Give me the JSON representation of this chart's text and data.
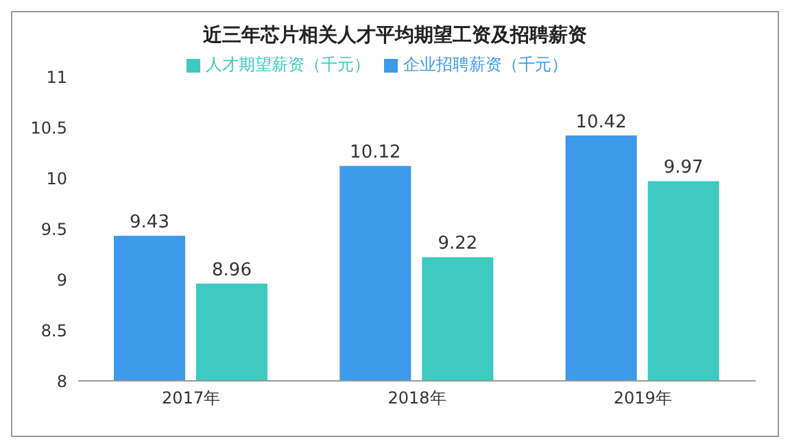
{
  "chart_data": {
    "type": "bar",
    "title": "近三年芯片相关人才平均期望工资及招聘薪资",
    "categories": [
      "2017年",
      "2018年",
      "2019年"
    ],
    "series": [
      {
        "name": "企业招聘薪资（千元）",
        "color": "#3d99ea",
        "values": [
          9.43,
          10.12,
          10.42
        ]
      },
      {
        "name": "人才期望薪资（千元）",
        "color": "#3ec9c1",
        "values": [
          8.96,
          9.22,
          9.97
        ]
      }
    ],
    "ylim": [
      8,
      11
    ],
    "yticks": [
      8,
      8.5,
      9,
      9.5,
      10,
      10.5,
      11
    ],
    "grid": false,
    "legend": "top",
    "data_labels": true
  }
}
